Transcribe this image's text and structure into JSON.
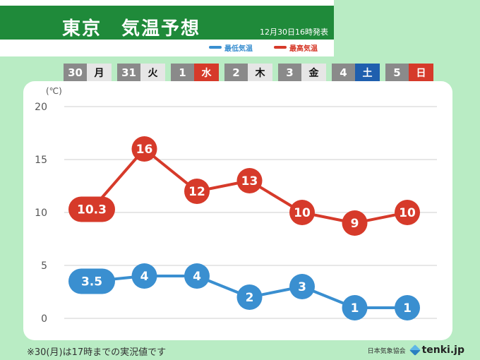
{
  "header": {
    "title": "東京　気温予想",
    "issued": "12月30日16時発表",
    "legend_min": "最低気温",
    "legend_max": "最高気温"
  },
  "days": [
    {
      "num": "30",
      "wd": "月",
      "kind": "weekday"
    },
    {
      "num": "31",
      "wd": "火",
      "kind": "weekday"
    },
    {
      "num": "1",
      "wd": "水",
      "kind": "holiday"
    },
    {
      "num": "2",
      "wd": "木",
      "kind": "weekday"
    },
    {
      "num": "3",
      "wd": "金",
      "kind": "weekday"
    },
    {
      "num": "4",
      "wd": "土",
      "kind": "saturday"
    },
    {
      "num": "5",
      "wd": "日",
      "kind": "sunday"
    }
  ],
  "colors": {
    "max": "#d63a2a",
    "min": "#3a8fd0",
    "grid": "#cfcfcf",
    "axis_text": "#555555"
  },
  "chart_data": {
    "type": "line",
    "categories": [
      "30 月",
      "31 火",
      "1 水",
      "2 木",
      "3 金",
      "4 土",
      "5 日"
    ],
    "yunit": "(℃)",
    "ylim": [
      0,
      20
    ],
    "yticks": [
      0,
      5,
      10,
      15,
      20
    ],
    "grid": true,
    "series": [
      {
        "name": "最高気温",
        "values": [
          10.3,
          16,
          12,
          13,
          10,
          9,
          10
        ],
        "labels": [
          "10.3",
          "16",
          "12",
          "13",
          "10",
          "9",
          "10"
        ],
        "color": "#d63a2a"
      },
      {
        "name": "最低気温",
        "values": [
          3.5,
          4,
          4,
          2,
          3,
          1,
          1
        ],
        "labels": [
          "3.5",
          "4",
          "4",
          "2",
          "3",
          "1",
          "1"
        ],
        "color": "#3a8fd0"
      }
    ]
  },
  "footer": {
    "note": "※30(月)は17時までの実況値です",
    "credit": "日本気象協会",
    "brand": "tenki.jp"
  }
}
